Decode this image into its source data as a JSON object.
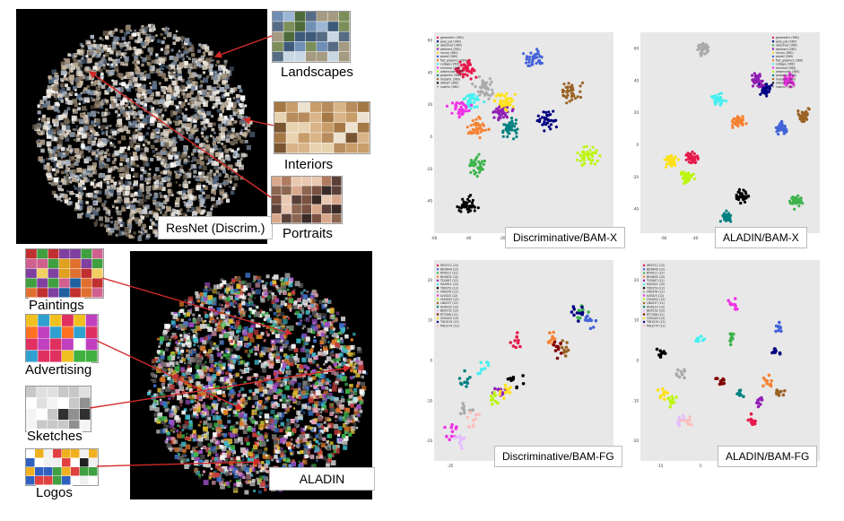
{
  "left_figure": {
    "top_caption": "ResNet (Discrim.)",
    "bottom_caption": "ALADIN",
    "top_labels": [
      "Landscapes",
      "Interiors",
      "Portraits"
    ],
    "bottom_labels": [
      "Paintings",
      "Advertising",
      "Sketches",
      "Logos"
    ],
    "arrow_color": "#d42a2a"
  },
  "right_figure": {
    "captions": {
      "a": "Discriminative/BAM-X",
      "b": "ALADIN/BAM-X",
      "c": "Discriminative/BAM-FG",
      "d": "ALADIN/BAM-FG"
    },
    "plot_background": "#e8e8e8"
  },
  "chart_data": [
    {
      "type": "scatter",
      "title": "Discriminative/BAM-X",
      "xlim": [
        -60,
        45
      ],
      "ylim": [
        -60,
        65
      ],
      "x_ticks": [
        "-60",
        "-40",
        "-20",
        "0",
        "20",
        "40"
      ],
      "y_ticks": [
        "60",
        "40",
        "20",
        "0",
        "-20",
        "-40"
      ],
      "legend": [
        "geometric (360)",
        "pale_pal (360)",
        "sketched (360)",
        "abstract (360)",
        "luxury (360)",
        "pastel (360)",
        "flat_graphics (360)",
        "collage (360)",
        "minimal (360)",
        "watercolor (360)",
        "graphite (360)",
        "metallic (360)",
        "wikiart (360)",
        "cosmic (360)"
      ],
      "colors": [
        "#e6194b",
        "#000080",
        "#3cb44b",
        "#911eb4",
        "#ffe119",
        "#4363d8",
        "#f58231",
        "#46f0f0",
        "#f032e6",
        "#bcf60c",
        "#008080",
        "#9a6324",
        "#000000",
        "#aaaaaa"
      ]
    },
    {
      "type": "scatter",
      "title": "ALADIN/BAM-X",
      "xlim": [
        -75,
        40
      ],
      "ylim": [
        -55,
        70
      ],
      "x_ticks": [
        "-60",
        "-40",
        "-20",
        "0",
        "20"
      ],
      "y_ticks": [
        "60",
        "40",
        "20",
        "0",
        "-20",
        "-40"
      ],
      "legend": [
        "geometric (360)",
        "pale_pal (360)",
        "sketched (360)",
        "abstract (360)",
        "luxury (360)",
        "pastel (360)",
        "flat_graphics (360)",
        "collage (360)",
        "minimal (360)",
        "watercolor (360)",
        "graphite (360)",
        "metallic (360)",
        "wikiart (360)",
        "cosmic (360)"
      ],
      "colors": [
        "#e6194b",
        "#000080",
        "#3cb44b",
        "#911eb4",
        "#ffe119",
        "#4363d8",
        "#f58231",
        "#46f0f0",
        "#f032e6",
        "#bcf60c",
        "#008080",
        "#9a6324",
        "#000000",
        "#aaaaaa"
      ]
    },
    {
      "type": "scatter",
      "title": "Discriminative/BAM-FG",
      "xlim": [
        -30,
        25
      ],
      "ylim": [
        -25,
        25
      ],
      "x_ticks": [
        "-25",
        "-10",
        "0",
        "10",
        "20"
      ],
      "y_ticks": [
        "20",
        "10",
        "0",
        "-10",
        "-20"
      ],
      "legend": [
        "HR0712 (12)",
        "BD0649 (12)",
        "RT0011 (12)",
        "BH0635 (12)",
        "TC0067 (12)",
        "HA0921 (12)",
        "TD0253 (12)",
        "FR0476 (12)",
        "LV0025 (12)",
        "CM4052 (12)",
        "LN0037 (12)",
        "AH6219 (12)",
        "BD4152 (12)",
        "RT7008 (12)",
        "CD0420 (12)",
        "TW1019 (12)",
        "MG2274 (12)"
      ],
      "colors": [
        "#e6194b",
        "#4363d8",
        "#3cb44b",
        "#f58231",
        "#911eb4",
        "#46f0f0",
        "#000000",
        "#aaaaaa",
        "#f032e6",
        "#bcf60c",
        "#9a6324",
        "#008080",
        "#e6beff",
        "#800000",
        "#ffe119",
        "#000080",
        "#fabebe"
      ]
    },
    {
      "type": "scatter",
      "title": "ALADIN/BAM-FG",
      "xlim": [
        -20,
        25
      ],
      "ylim": [
        -25,
        25
      ],
      "x_ticks": [
        "-15",
        "-5",
        "0",
        "5",
        "10",
        "15"
      ],
      "y_ticks": [
        "20",
        "10",
        "0",
        "-10",
        "-20"
      ],
      "legend": [
        "HR0712 (12)",
        "BD0649 (12)",
        "RT0011 (12)",
        "BH0635 (12)",
        "TC0067 (12)",
        "HA0921 (12)",
        "TD0253 (12)",
        "FR0476 (12)",
        "LV0025 (12)",
        "CM4052 (12)",
        "LN0037 (12)",
        "AH6219 (12)",
        "BD4152 (12)",
        "RT7008 (12)",
        "CD0420 (12)",
        "TW1019 (12)",
        "MG2274 (12)"
      ],
      "colors": [
        "#e6194b",
        "#4363d8",
        "#3cb44b",
        "#f58231",
        "#911eb4",
        "#46f0f0",
        "#000000",
        "#aaaaaa",
        "#f032e6",
        "#bcf60c",
        "#9a6324",
        "#008080",
        "#e6beff",
        "#800000",
        "#ffe119",
        "#000080",
        "#fabebe"
      ]
    }
  ]
}
